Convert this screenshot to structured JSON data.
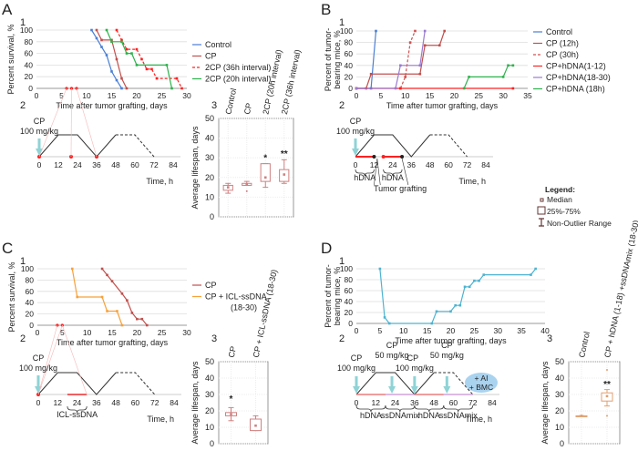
{
  "colors": {
    "control": "#4a7fd4",
    "cp": "#c0504d",
    "red": "#ff2020",
    "green": "#2db24c",
    "purple": "#9a7ad0",
    "orange": "#f7a13a",
    "cyan": "#4db3d1",
    "arrow": "#8fd3d6",
    "box": "#d08080",
    "grid": "#dddddd"
  },
  "panels": {
    "A": {
      "letter": "A",
      "n1": "1",
      "n2": "2",
      "n3": "3"
    },
    "B": {
      "letter": "B",
      "n1": "1",
      "n2": "2"
    },
    "C": {
      "letter": "C",
      "n1": "1",
      "n2": "2",
      "n3": "3"
    },
    "D": {
      "letter": "D",
      "n1": "1",
      "n2": "2",
      "n3": "3"
    }
  },
  "chart_data": [
    {
      "id": "A1",
      "type": "line",
      "ylabel": "Percent survival, %",
      "xlabel": "Time after tumor grafting, days",
      "xlim": [
        0,
        30
      ],
      "ylim": [
        0,
        100
      ],
      "xticks": [
        0,
        5,
        10,
        15,
        20,
        25,
        30
      ],
      "yticks": [
        0,
        20,
        40,
        60,
        80,
        100
      ],
      "grid": true,
      "legend": "right",
      "series": [
        {
          "name": "Control",
          "color": "#4a7fd4",
          "points": [
            [
              11,
              100
            ],
            [
              12,
              86
            ],
            [
              13,
              71
            ],
            [
              14,
              57
            ],
            [
              15,
              29
            ],
            [
              16,
              14
            ],
            [
              17,
              0
            ]
          ]
        },
        {
          "name": "CP",
          "color": "#c0504d",
          "points": [
            [
              12,
              100
            ],
            [
              13,
              83
            ],
            [
              15,
              83
            ],
            [
              16,
              50
            ],
            [
              17,
              17
            ],
            [
              18,
              0
            ]
          ]
        },
        {
          "name": "2CP (36h interval)",
          "color": "#ff2020",
          "dashed": true,
          "points": [
            [
              16,
              100
            ],
            [
              17,
              83
            ],
            [
              18,
              67
            ],
            [
              20,
              67
            ],
            [
              21,
              50
            ],
            [
              22,
              33
            ],
            [
              23,
              33
            ],
            [
              24,
              17
            ],
            [
              28,
              17
            ],
            [
              29,
              0
            ]
          ]
        },
        {
          "name": "2CP (20h interval)",
          "color": "#2db24c",
          "points": [
            [
              14,
              100
            ],
            [
              15,
              80
            ],
            [
              17,
              80
            ],
            [
              18,
              60
            ],
            [
              19,
              60
            ],
            [
              20,
              40
            ],
            [
              26,
              40
            ],
            [
              27,
              0
            ]
          ]
        }
      ],
      "markers": [
        [
          6,
          0
        ],
        [
          7,
          0
        ],
        [
          8,
          0
        ]
      ]
    },
    {
      "id": "B1",
      "type": "line",
      "ylabel": "Percent of tumor-bearing mice, %",
      "xlabel": "Time after tumor grafting, days",
      "xlim": [
        0,
        35
      ],
      "ylim": [
        0,
        100
      ],
      "xticks": [
        0,
        5,
        10,
        15,
        20,
        25,
        30,
        35
      ],
      "yticks": [
        0,
        20,
        40,
        60,
        80,
        100
      ],
      "grid": true,
      "legend": "right",
      "series": [
        {
          "name": "Control",
          "color": "#4a7fd4",
          "points": [
            [
              0,
              0
            ],
            [
              3,
              0
            ],
            [
              4,
              100
            ]
          ]
        },
        {
          "name": "CP (12h)",
          "color": "#c0504d",
          "points": [
            [
              0,
              0
            ],
            [
              2,
              0
            ],
            [
              3,
              25
            ],
            [
              13,
              25
            ],
            [
              14,
              75
            ],
            [
              17,
              75
            ],
            [
              18,
              100
            ]
          ]
        },
        {
          "name": "CP (30h)",
          "color": "#d05050",
          "dashed": true,
          "points": [
            [
              9,
              0
            ],
            [
              10,
              20
            ],
            [
              11,
              80
            ],
            [
              12,
              100
            ]
          ]
        },
        {
          "name": "CP+hDNA(1-12)",
          "color": "#ff2020",
          "points": [
            [
              0,
              0
            ],
            [
              9,
              0
            ],
            [
              32,
              0
            ]
          ]
        },
        {
          "name": "CP+hDNA(18-30)",
          "color": "#9a7ad0",
          "points": [
            [
              0,
              0
            ],
            [
              8,
              0
            ],
            [
              9,
              40
            ],
            [
              13,
              40
            ],
            [
              14,
              100
            ]
          ]
        },
        {
          "name": "CP+hDNA (18h)",
          "color": "#2db24c",
          "points": [
            [
              22,
              0
            ],
            [
              23,
              20
            ],
            [
              30,
              20
            ],
            [
              31,
              40
            ],
            [
              32,
              40
            ]
          ]
        }
      ]
    },
    {
      "id": "C1",
      "type": "line",
      "ylabel": "Percent survival, %",
      "xlabel": "Time after tumor grafting, days",
      "xlim": [
        0,
        30
      ],
      "ylim": [
        0,
        100
      ],
      "xticks": [
        0,
        5,
        10,
        15,
        20,
        25,
        30
      ],
      "yticks": [
        0,
        20,
        40,
        60,
        80,
        100
      ],
      "grid": true,
      "legend": "right",
      "series": [
        {
          "name": "CP",
          "color": "#c0504d",
          "points": [
            [
              13,
              100
            ],
            [
              14,
              89
            ],
            [
              15,
              78
            ],
            [
              17,
              56
            ],
            [
              18,
              44
            ],
            [
              19,
              22
            ],
            [
              20,
              11
            ],
            [
              21,
              11
            ],
            [
              22,
              0
            ]
          ]
        },
        {
          "name": "CP + ICL-ssDNA (18-30)",
          "color": "#f7a13a",
          "points": [
            [
              7,
              100
            ],
            [
              8,
              50
            ],
            [
              13,
              50
            ],
            [
              14,
              25
            ],
            [
              16,
              25
            ],
            [
              17,
              0
            ]
          ]
        }
      ],
      "markers": [
        [
          4,
          0
        ],
        [
          5,
          0
        ]
      ]
    },
    {
      "id": "D1",
      "type": "line",
      "ylabel": "Percent of tumor-bearing mice, %",
      "xlabel": "Time after tumor grafting, days",
      "xlim": [
        0,
        40
      ],
      "ylim": [
        0,
        100
      ],
      "xticks": [
        0,
        5,
        10,
        15,
        20,
        25,
        30,
        35,
        40
      ],
      "yticks": [
        0,
        20,
        40,
        60,
        80,
        100
      ],
      "grid": true,
      "legend": "none",
      "series": [
        {
          "color": "#4db3d1",
          "points": [
            [
              5,
              100
            ],
            [
              6,
              11
            ],
            [
              7,
              0
            ],
            [
              16,
              0
            ],
            [
              17,
              22
            ],
            [
              20,
              22
            ],
            [
              21,
              33
            ],
            [
              22,
              33
            ],
            [
              23,
              67
            ],
            [
              24,
              67
            ],
            [
              25,
              78
            ],
            [
              26,
              78
            ],
            [
              27,
              89
            ],
            [
              37,
              89
            ],
            [
              38,
              100
            ]
          ]
        }
      ]
    },
    {
      "id": "A3",
      "type": "box",
      "ylabel": "Average lifespan, days",
      "ylim": [
        0,
        50
      ],
      "yticks": [
        0,
        10,
        20,
        30,
        40,
        50
      ],
      "categories": [
        "Control",
        "CP",
        "2CP (20h interval)",
        "2CP (36h interval)"
      ],
      "boxes": [
        {
          "median": 15,
          "q1": 13.5,
          "q3": 16,
          "min": 12,
          "max": 17,
          "outliers": [],
          "sig": ""
        },
        {
          "median": 16.5,
          "q1": 16,
          "q3": 17,
          "min": 16,
          "max": 18,
          "outliers": [
            13
          ],
          "sig": ""
        },
        {
          "median": 20,
          "q1": 18,
          "q3": 27,
          "min": 15,
          "max": 27,
          "outliers": [],
          "sig": "*"
        },
        {
          "median": 21.5,
          "q1": 18,
          "q3": 24,
          "min": 17,
          "max": 29,
          "outliers": [],
          "sig": "**"
        }
      ]
    },
    {
      "id": "C3",
      "type": "box",
      "ylabel": "Average lifespan, days",
      "ylim": [
        0,
        50
      ],
      "yticks": [
        0,
        10,
        20,
        30,
        40,
        50
      ],
      "categories": [
        "CP",
        "CP + ICL-ssDNA (18-30)"
      ],
      "boxes": [
        {
          "median": 18,
          "q1": 17,
          "q3": 19,
          "min": 14,
          "max": 22,
          "outliers": [],
          "sig": "*"
        },
        {
          "median": 11,
          "q1": 8,
          "q3": 15,
          "min": 8,
          "max": 17,
          "outliers": [],
          "sig": ""
        }
      ]
    },
    {
      "id": "D3",
      "type": "box",
      "ylabel": "Average lifespan, days",
      "ylim": [
        0,
        50
      ],
      "yticks": [
        0,
        10,
        20,
        30,
        40,
        50
      ],
      "categories": [
        "Control",
        "CP + hDNA (1-18) +ssDNAmix (18-30)"
      ],
      "boxes": [
        {
          "median": 17,
          "q1": 17,
          "q3": 17,
          "min": 17,
          "max": 17,
          "outliers": [],
          "sig": ""
        },
        {
          "median": 29,
          "q1": 26,
          "q3": 31,
          "min": 23,
          "max": 33,
          "outliers": [
            17,
            45
          ],
          "sig": "**"
        }
      ]
    }
  ],
  "timelines": {
    "xlabel": "Time, h",
    "ticks": [
      0,
      12,
      24,
      36,
      48,
      60,
      72,
      84
    ],
    "A": {
      "dose": "CP",
      "dose2": "100 mg/kg"
    },
    "B": {
      "dose": "CP",
      "dose2": "100 mg/kg",
      "bar1": "hDNA",
      "bar2": "hDNA",
      "grafting": "Tumor grafting"
    },
    "C": {
      "dose": "CP",
      "dose2": "100 mg/kg",
      "bar1": "ICL-ssDNA"
    },
    "D": {
      "doses": [
        [
          "CP",
          "100 mg/kg"
        ],
        [
          "CP",
          "50 mg/kg"
        ],
        [
          "CP",
          "100 mg/kg"
        ],
        [
          "CP",
          "50 mg/kg"
        ]
      ],
      "bars": [
        "hDNA",
        "ssDNAmix",
        "hDNA",
        "ssDNAmix"
      ],
      "extra1": "+ AI",
      "extra2": "+ BMC"
    }
  },
  "legend": {
    "title": "Legend:",
    "median": "Median",
    "iqr": "25%-75%",
    "range": "Non-Outlier Range"
  }
}
